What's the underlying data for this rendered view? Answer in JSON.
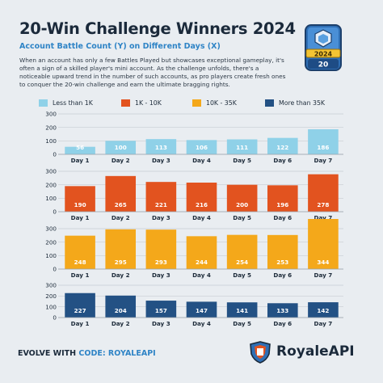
{
  "header": {
    "title": "20-Win Challenge Winners 2024",
    "subtitle": "Account Battle Count (Y) on Different Days (X)",
    "description": "When an account has only a few Battles Played but showcases exceptional gameplay, it's often a sign of a skilled player's mini account. As the challenge unfolds, there's a noticeable upward trend in the number of such accounts, as pro players create fresh ones to conquer the 20-win challenge and earn the ultimate bragging rights."
  },
  "badge": {
    "year": "2024",
    "number": "20",
    "icon": "clash-royale-trophy-icon"
  },
  "legend": [
    {
      "label": "Less than 1K",
      "color": "#8fd1e8"
    },
    {
      "label": "1K - 10K",
      "color": "#e2531f"
    },
    {
      "label": "10K - 35K",
      "color": "#f4a81a"
    },
    {
      "label": "More than 35K",
      "color": "#235184"
    }
  ],
  "chart_data": [
    {
      "type": "bar",
      "series_label": "Less than 1K",
      "color": "#8fd1e8",
      "label_color": "#ffffff",
      "categories": [
        "Day 1",
        "Day 2",
        "Day 3",
        "Day 4",
        "Day 5",
        "Day 6",
        "Day 7"
      ],
      "values": [
        56,
        100,
        113,
        106,
        111,
        122,
        186
      ],
      "yticks": [
        0,
        100,
        200,
        300
      ],
      "ylim": [
        0,
        300
      ],
      "grid": true
    },
    {
      "type": "bar",
      "series_label": "1K - 10K",
      "color": "#e2531f",
      "label_color": "#ffffff",
      "categories": [
        "Day 1",
        "Day 2",
        "Day 3",
        "Day 4",
        "Day 5",
        "Day 6",
        "Day 7"
      ],
      "values": [
        190,
        265,
        221,
        216,
        200,
        196,
        278
      ],
      "yticks": [
        0,
        100,
        200,
        300
      ],
      "ylim": [
        0,
        300
      ],
      "grid": true
    },
    {
      "type": "bar",
      "series_label": "10K - 35K",
      "color": "#f4a81a",
      "label_color": "#ffffff",
      "categories": [
        "Day 1",
        "Day 2",
        "Day 3",
        "Day 4",
        "Day 5",
        "Day 6",
        "Day 7"
      ],
      "values": [
        248,
        295,
        293,
        244,
        254,
        253,
        344
      ],
      "yticks": [
        0,
        100,
        200,
        300
      ],
      "ylim": [
        0,
        300
      ],
      "grid": true
    },
    {
      "type": "bar",
      "series_label": "More than 35K",
      "color": "#235184",
      "label_color": "#ffffff",
      "categories": [
        "Day 1",
        "Day 2",
        "Day 3",
        "Day 4",
        "Day 5",
        "Day 6",
        "Day 7"
      ],
      "values": [
        227,
        204,
        157,
        147,
        141,
        133,
        142
      ],
      "yticks": [
        0,
        100,
        200,
        300
      ],
      "ylim": [
        0,
        300
      ],
      "grid": true
    }
  ],
  "footer": {
    "evolve_text": "EVOLVE WITH",
    "code_text": "CODE: ROYALEAPI",
    "brand": "RoyaleAPI",
    "logo_icon": "royaleapi-shield-icon"
  }
}
